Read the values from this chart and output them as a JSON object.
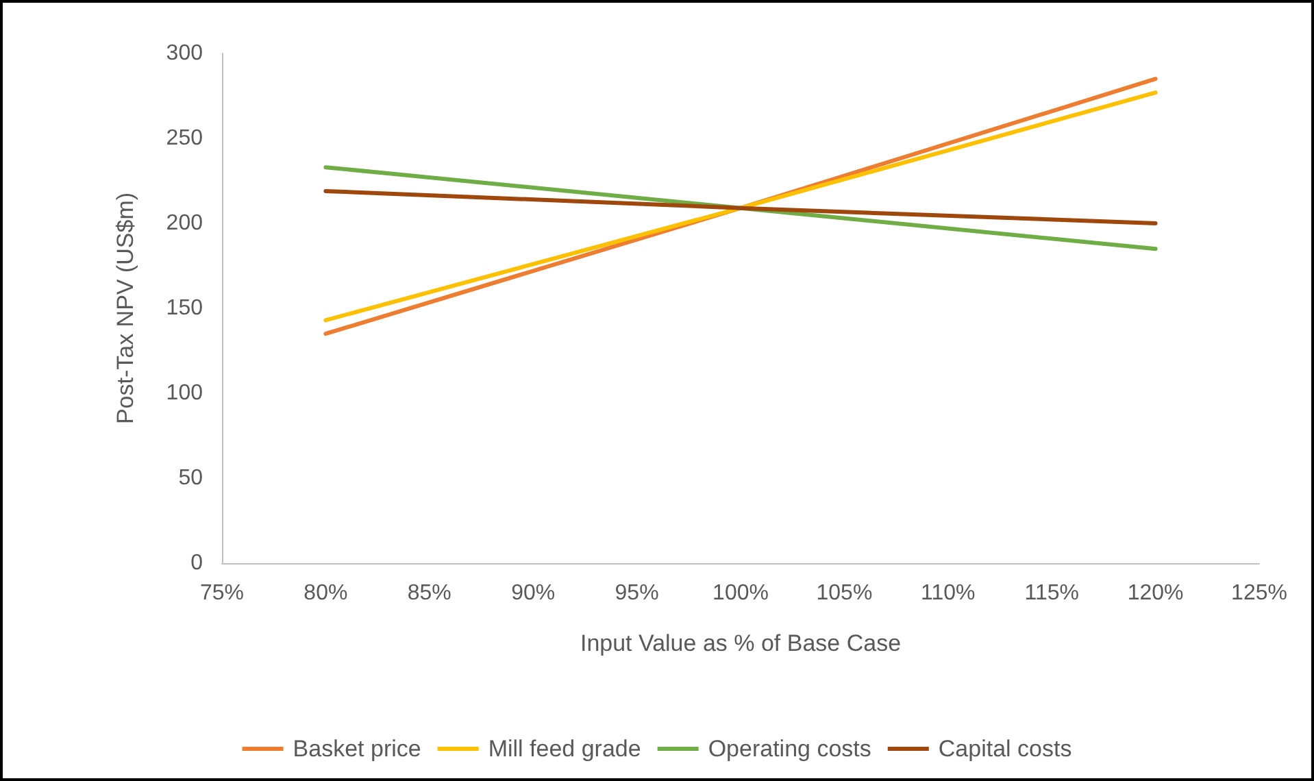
{
  "chart_data": {
    "type": "line",
    "xlabel": "Input Value as % of Base Case",
    "ylabel": "Post-Tax NPV (US$m)",
    "x": [
      80,
      100,
      120
    ],
    "series": [
      {
        "name": "Basket price",
        "color": "#ed7d31",
        "values": [
          135,
          209,
          285
        ]
      },
      {
        "name": "Mill feed grade",
        "color": "#ffc000",
        "values": [
          143,
          209,
          277
        ]
      },
      {
        "name": "Operating costs",
        "color": "#70ad47",
        "values": [
          233,
          209,
          185
        ]
      },
      {
        "name": "Capital costs",
        "color": "#9e480e",
        "values": [
          219,
          209,
          200
        ]
      }
    ],
    "xlim": [
      75,
      125
    ],
    "xticks": [
      {
        "value": 75,
        "label": "75%"
      },
      {
        "value": 80,
        "label": "80%"
      },
      {
        "value": 85,
        "label": "85%"
      },
      {
        "value": 90,
        "label": "90%"
      },
      {
        "value": 95,
        "label": "95%"
      },
      {
        "value": 100,
        "label": "100%"
      },
      {
        "value": 105,
        "label": "105%"
      },
      {
        "value": 110,
        "label": "110%"
      },
      {
        "value": 115,
        "label": "115%"
      },
      {
        "value": 120,
        "label": "120%"
      },
      {
        "value": 125,
        "label": "125%"
      }
    ],
    "ylim": [
      0,
      300
    ],
    "yticks": [
      0,
      50,
      100,
      150,
      200,
      250,
      300
    ],
    "grid": false,
    "legend": "bottom",
    "marker": "none",
    "line_style": "solid"
  }
}
